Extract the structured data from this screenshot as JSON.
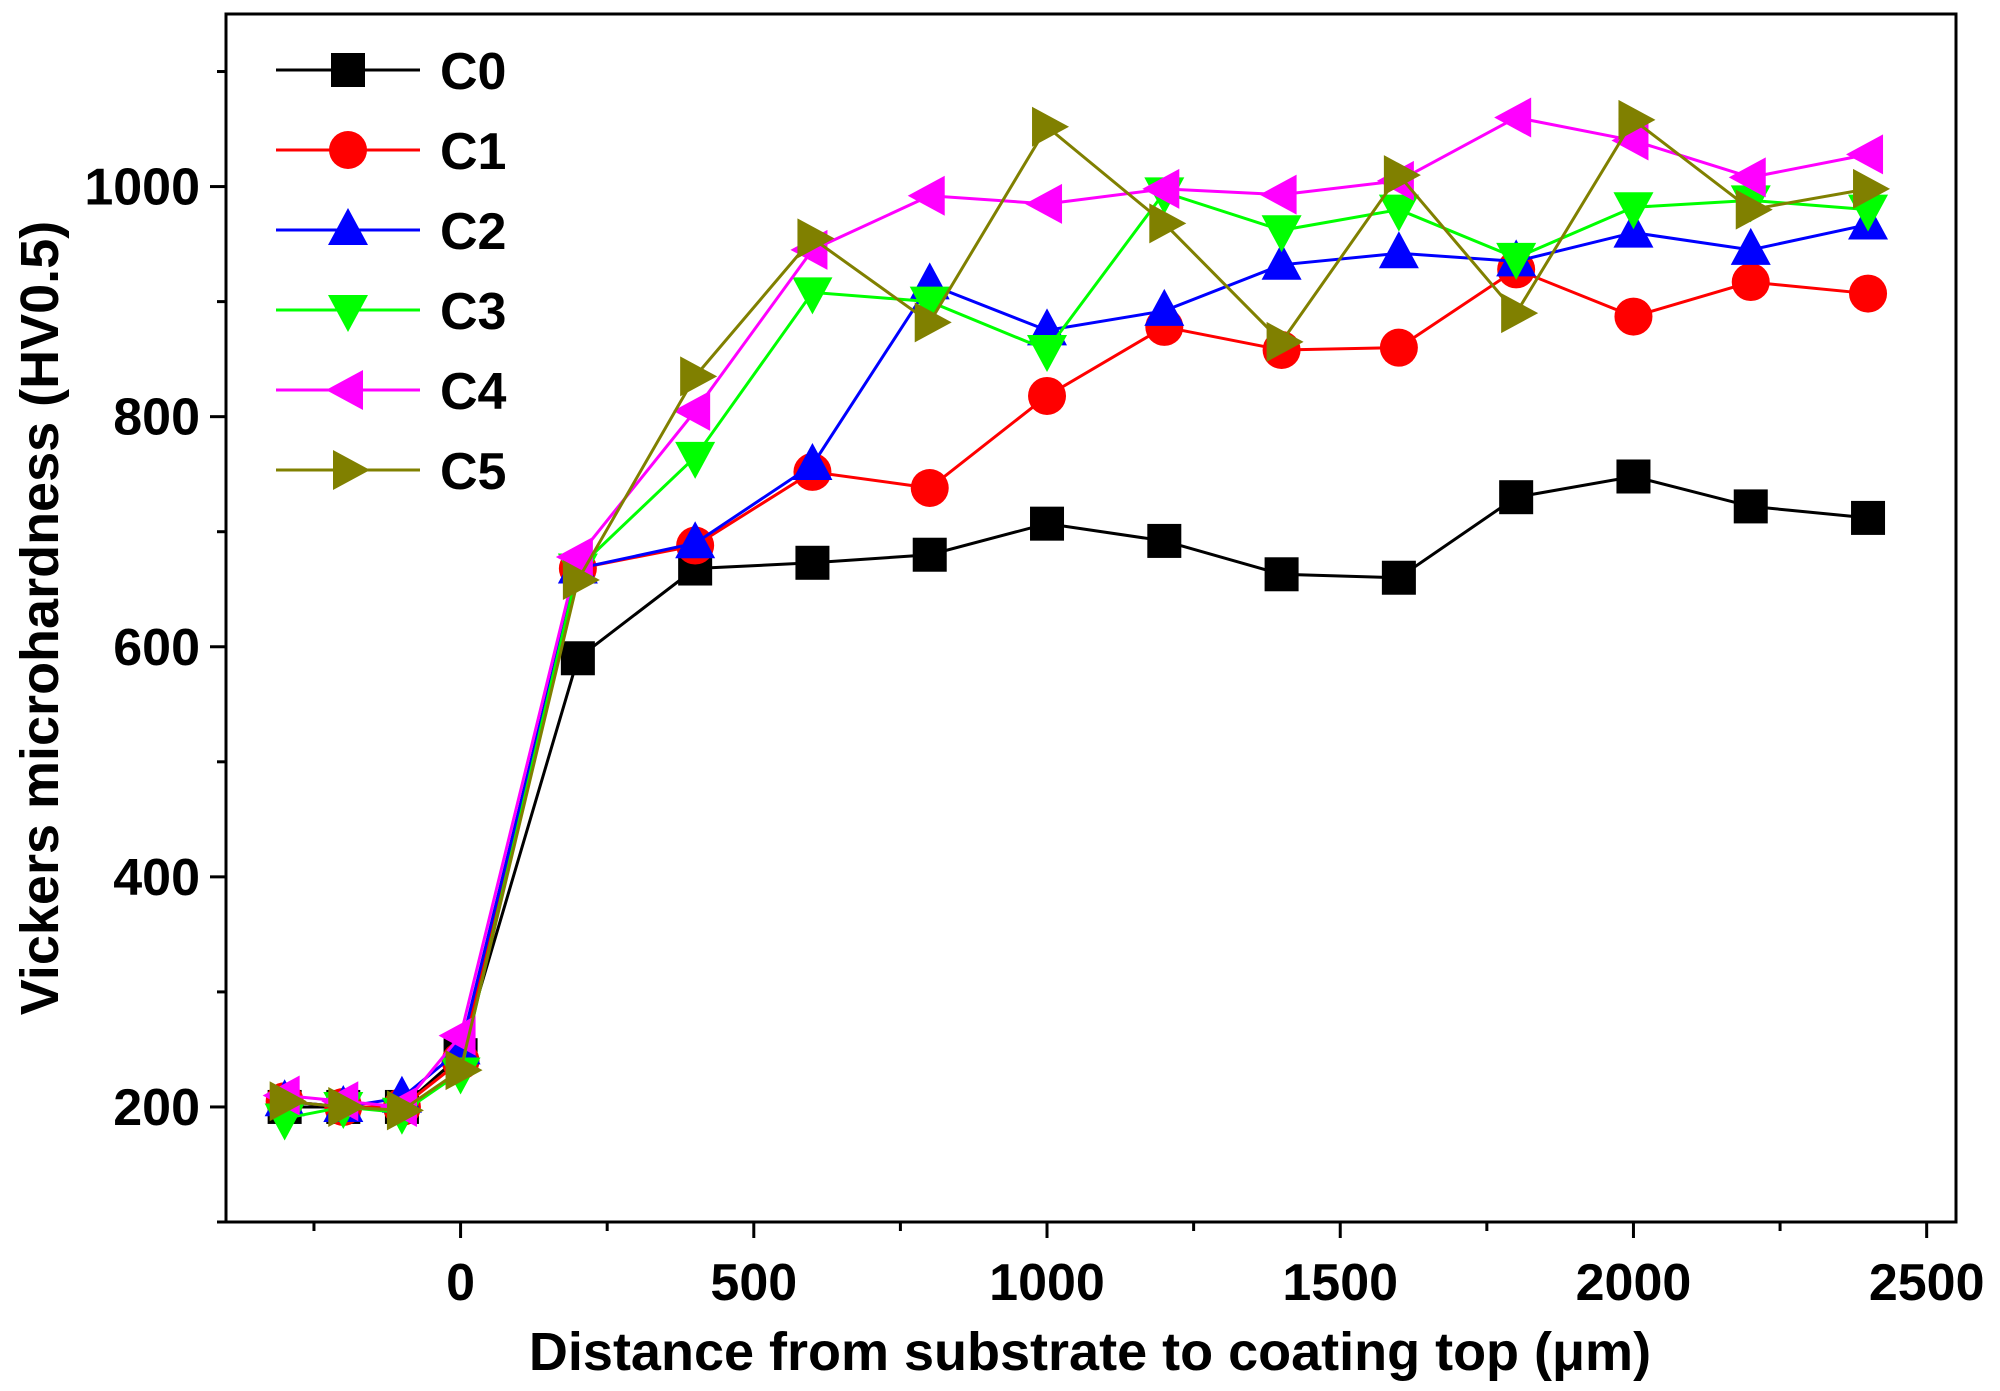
{
  "chart_data": {
    "type": "line",
    "title": "",
    "xlabel": "Distance from substrate to coating top (μm)",
    "ylabel": "Vickers microhardness (HV0.5)",
    "xlim": [
      -400,
      2550
    ],
    "ylim": [
      100,
      1150
    ],
    "xticks": [
      0,
      500,
      1000,
      1500,
      2000,
      2500
    ],
    "yticks": [
      200,
      400,
      600,
      800,
      1000
    ],
    "grid": false,
    "legend_position": "top-left",
    "x": [
      -300,
      -200,
      -100,
      0,
      200,
      400,
      600,
      800,
      1000,
      1200,
      1400,
      1600,
      1800,
      2000,
      2200,
      2400
    ],
    "series": [
      {
        "name": "C0",
        "color": "#000000",
        "marker": "square",
        "values": [
          200,
          200,
          200,
          245,
          590,
          668,
          673,
          680,
          707,
          692,
          663,
          660,
          730,
          748,
          722,
          712
        ]
      },
      {
        "name": "C1",
        "color": "#ff0000",
        "marker": "circle",
        "values": [
          205,
          200,
          200,
          240,
          668,
          688,
          752,
          738,
          818,
          878,
          858,
          860,
          928,
          887,
          917,
          907
        ]
      },
      {
        "name": "C2",
        "color": "#0000ff",
        "marker": "triangle-up",
        "values": [
          205,
          200,
          208,
          250,
          668,
          690,
          758,
          915,
          875,
          892,
          932,
          942,
          935,
          960,
          945,
          967
        ]
      },
      {
        "name": "C3",
        "color": "#00ff00",
        "marker": "triangle-down",
        "values": [
          190,
          200,
          195,
          230,
          668,
          765,
          908,
          900,
          858,
          995,
          962,
          980,
          938,
          982,
          988,
          980
        ]
      },
      {
        "name": "C4",
        "color": "#ff00ff",
        "marker": "triangle-left",
        "values": [
          210,
          205,
          200,
          262,
          678,
          805,
          945,
          992,
          985,
          998,
          993,
          1005,
          1060,
          1040,
          1008,
          1028
        ]
      },
      {
        "name": "C5",
        "color": "#808000",
        "marker": "triangle-right",
        "values": [
          205,
          200,
          197,
          232,
          658,
          835,
          955,
          882,
          1052,
          968,
          865,
          1010,
          890,
          1058,
          980,
          998
        ]
      }
    ]
  }
}
